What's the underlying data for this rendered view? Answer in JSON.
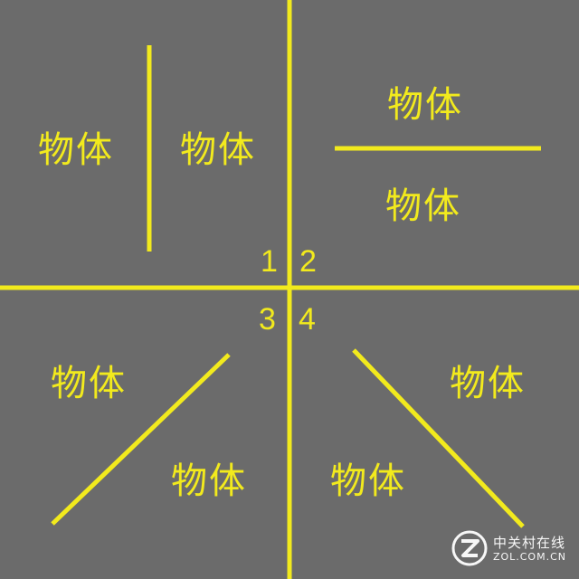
{
  "colors": {
    "background": "#6b6b6b",
    "accent": "#f2ea1d",
    "watermark": "#ffffff"
  },
  "labels": {
    "q1_left": "物体",
    "q1_right": "物体",
    "q2_top": "物体",
    "q2_bottom": "物体",
    "q3_top": "物体",
    "q3_bottom": "物体",
    "q4_left": "物体",
    "q4_right": "物体"
  },
  "quadrants": {
    "one": "1",
    "two": "2",
    "three": "3",
    "four": "4"
  },
  "watermark": {
    "icon": "zol-logo-icon",
    "cn": "中关村在线",
    "en": "ZOL.COM.CN"
  }
}
